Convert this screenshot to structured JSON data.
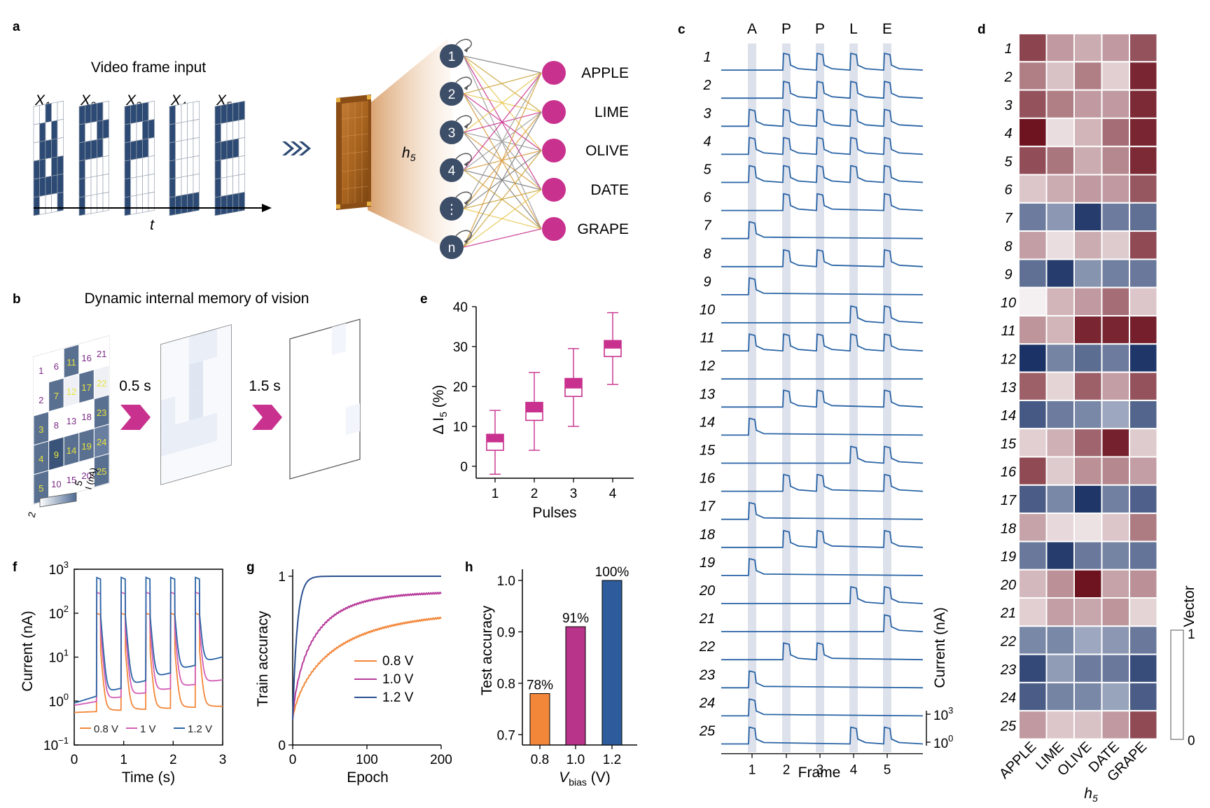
{
  "colors": {
    "navy": "#2c4a73",
    "magenta": "#c8318e",
    "blue_line": "#2a64a6",
    "orange": "#f2873a",
    "purple_bar": "#b8338a",
    "blue_bar": "#2d5b9b",
    "heat_high": "#6e1421",
    "heat_low": "#1b3266",
    "stripe": "#d7dce8"
  },
  "panels": {
    "a": {
      "letter": "a",
      "title": "Video frame input",
      "frames": [
        "X",
        "X",
        "X",
        "X",
        "X"
      ],
      "frame_subs": [
        "1",
        "2",
        "3",
        "4",
        "5"
      ],
      "time_label": "t",
      "hidden_label": "h",
      "hidden_sub": "5",
      "nodes": [
        "1",
        "2",
        "3",
        "4",
        "⋮",
        "n"
      ],
      "outputs": [
        "APPLE",
        "LIME",
        "OLIVE",
        "DATE",
        "GRAPE"
      ]
    },
    "b": {
      "letter": "b",
      "title": "Dynamic internal memory of vision",
      "times": [
        "0.5 s",
        "1.5 s"
      ],
      "cell_numbers": [
        "1",
        "2",
        "3",
        "4",
        "5",
        "6",
        "7",
        "8",
        "9",
        "10",
        "11",
        "12",
        "13",
        "14",
        "15",
        "16",
        "17",
        "18",
        "19",
        "20",
        "21",
        "22",
        "23",
        "24",
        "25"
      ],
      "colorbar_min": "2",
      "colorbar_max": "5",
      "colorbar_label": "I (nA)"
    },
    "c": {
      "letter": "c",
      "letters": [
        "A",
        "P",
        "P",
        "L",
        "E"
      ],
      "xlabel": "Frame",
      "xticks": [
        "1",
        "2",
        "3",
        "4",
        "5"
      ],
      "ylabel": "Current (nA)",
      "scale_ticks": [
        "10",
        "10"
      ],
      "scale_tick_exps": [
        "3",
        "0"
      ],
      "rows": [
        "1",
        "2",
        "3",
        "4",
        "5",
        "6",
        "7",
        "8",
        "9",
        "10",
        "11",
        "12",
        "13",
        "14",
        "15",
        "16",
        "17",
        "18",
        "19",
        "20",
        "21",
        "22",
        "23",
        "24",
        "25"
      ]
    },
    "d": {
      "letter": "d",
      "columns": [
        "APPLE",
        "LIME",
        "OLIVE",
        "DATE",
        "GRAPE"
      ],
      "xlabel": "h",
      "xlabel_sub": "5",
      "colorbar_label": "Vector",
      "colorbar_ticks": [
        "1",
        "0"
      ],
      "rows": [
        "1",
        "2",
        "3",
        "4",
        "5",
        "6",
        "7",
        "8",
        "9",
        "10",
        "11",
        "12",
        "13",
        "14",
        "15",
        "16",
        "17",
        "18",
        "19",
        "20",
        "21",
        "22",
        "23",
        "24",
        "25"
      ]
    },
    "e": {
      "letter": "e",
      "ylabel": "Δ I",
      "ylabel_sub": "5",
      "ylabel_unit": "(%)",
      "xlabel": "Pulses",
      "yticks": [
        "0",
        "10",
        "20",
        "30",
        "40"
      ],
      "xticks": [
        "1",
        "2",
        "3",
        "4"
      ]
    },
    "f": {
      "letter": "f",
      "ylabel": "Current (nA)",
      "xlabel": "Time (s)",
      "ytick_base": "10",
      "ytick_exps": [
        "3",
        "2",
        "1",
        "0",
        "−1"
      ],
      "xticks": [
        "0",
        "1",
        "2",
        "3"
      ],
      "legend": [
        "0.8 V",
        "1 V",
        "1.2 V"
      ]
    },
    "g": {
      "letter": "g",
      "ylabel": "Train accuracy",
      "xlabel": "Epoch",
      "yticks": [
        "0",
        "1"
      ],
      "xticks": [
        "0",
        "100",
        "200"
      ],
      "legend": [
        "0.8 V",
        "1.0 V",
        "1.2 V"
      ]
    },
    "h": {
      "letter": "h",
      "ylabel": "Test accuracy",
      "xlabel_main": "V",
      "xlabel_sub": "bias",
      "xlabel_unit": "(V)",
      "yticks": [
        "0.7",
        "0.8",
        "0.9",
        "1.0"
      ],
      "xticks": [
        "0.8",
        "1.0",
        "1.2"
      ],
      "bar_labels": [
        "78%",
        "91%",
        "100%"
      ]
    }
  },
  "chart_data": [
    {
      "panel": "c",
      "type": "line",
      "description_frames": [
        "A",
        "P",
        "P",
        "L",
        "E"
      ],
      "x": [
        1,
        2,
        3,
        4,
        5
      ],
      "series": [
        {
          "name": "1",
          "values": [
            0,
            1,
            1,
            1,
            1
          ]
        },
        {
          "name": "2",
          "values": [
            0,
            1,
            1,
            1,
            1
          ]
        },
        {
          "name": "3",
          "values": [
            1,
            1,
            1,
            1,
            1
          ]
        },
        {
          "name": "4",
          "values": [
            1,
            1,
            1,
            1,
            1
          ]
        },
        {
          "name": "5",
          "values": [
            1,
            1,
            1,
            1,
            1
          ]
        },
        {
          "name": "6",
          "values": [
            0,
            1,
            1,
            0,
            1
          ]
        },
        {
          "name": "7",
          "values": [
            1,
            0,
            0,
            0,
            0
          ]
        },
        {
          "name": "8",
          "values": [
            0,
            1,
            1,
            0,
            1
          ]
        },
        {
          "name": "9",
          "values": [
            1,
            0,
            0,
            0,
            0
          ]
        },
        {
          "name": "10",
          "values": [
            0,
            0,
            0,
            1,
            1
          ]
        },
        {
          "name": "11",
          "values": [
            1,
            1,
            1,
            1,
            1
          ]
        },
        {
          "name": "12",
          "values": [
            0,
            0,
            0,
            0,
            0
          ]
        },
        {
          "name": "13",
          "values": [
            0,
            1,
            1,
            0,
            1
          ]
        },
        {
          "name": "14",
          "values": [
            1,
            0,
            0,
            0,
            0
          ]
        },
        {
          "name": "15",
          "values": [
            0,
            0,
            0,
            1,
            1
          ]
        },
        {
          "name": "16",
          "values": [
            0,
            1,
            1,
            0,
            1
          ]
        },
        {
          "name": "17",
          "values": [
            1,
            0,
            0,
            0,
            0
          ]
        },
        {
          "name": "18",
          "values": [
            0,
            1,
            1,
            0,
            1
          ]
        },
        {
          "name": "19",
          "values": [
            1,
            0,
            0,
            0,
            0
          ]
        },
        {
          "name": "20",
          "values": [
            0,
            0,
            0,
            1,
            1
          ]
        },
        {
          "name": "21",
          "values": [
            0,
            0,
            0,
            0,
            1
          ]
        },
        {
          "name": "22",
          "values": [
            0,
            1,
            1,
            0,
            0
          ]
        },
        {
          "name": "23",
          "values": [
            1,
            0,
            0,
            0,
            0
          ]
        },
        {
          "name": "24",
          "values": [
            1,
            0,
            0,
            0,
            0
          ]
        },
        {
          "name": "25",
          "values": [
            1,
            0,
            0,
            1,
            1
          ]
        }
      ],
      "xlabel": "Frame",
      "ylabel": "Current (nA)"
    },
    {
      "panel": "d",
      "type": "heatmap",
      "columns": [
        "APPLE",
        "LIME",
        "OLIVE",
        "DATE",
        "GRAPE"
      ],
      "rows": [
        "1",
        "2",
        "3",
        "4",
        "5",
        "6",
        "7",
        "8",
        "9",
        "10",
        "11",
        "12",
        "13",
        "14",
        "15",
        "16",
        "17",
        "18",
        "19",
        "20",
        "21",
        "22",
        "23",
        "24",
        "25"
      ],
      "values": [
        [
          0.78,
          0.4,
          0.32,
          0.4,
          0.72
        ],
        [
          0.52,
          0.22,
          0.52,
          0.16,
          0.92
        ],
        [
          0.72,
          0.52,
          0.4,
          0.4,
          0.9
        ],
        [
          1.0,
          0.1,
          0.28,
          0.6,
          0.92
        ],
        [
          0.74,
          0.56,
          0.32,
          0.48,
          0.9
        ],
        [
          0.2,
          0.32,
          0.4,
          0.4,
          0.7
        ],
        [
          -0.62,
          -0.48,
          -0.95,
          -0.62,
          -0.68
        ],
        [
          0.38,
          0.1,
          0.32,
          0.18,
          0.76
        ],
        [
          -0.68,
          -0.95,
          -0.5,
          -0.6,
          -0.64
        ],
        [
          0.02,
          0.28,
          0.4,
          0.6,
          0.2
        ],
        [
          0.42,
          0.28,
          0.92,
          0.92,
          0.95
        ],
        [
          -1.0,
          -0.58,
          -0.7,
          -0.62,
          -0.98
        ],
        [
          0.66,
          0.14,
          0.66,
          0.38,
          0.72
        ],
        [
          -0.8,
          -0.62,
          -0.56,
          -0.4,
          -0.74
        ],
        [
          0.16,
          0.3,
          0.64,
          0.94,
          0.18
        ],
        [
          0.76,
          0.18,
          0.44,
          0.48,
          0.38
        ],
        [
          -0.78,
          -0.56,
          -0.98,
          -0.6,
          -0.76
        ],
        [
          0.36,
          0.12,
          0.08,
          0.2,
          0.54
        ],
        [
          -0.64,
          -0.95,
          -0.64,
          -0.58,
          -0.66
        ],
        [
          0.26,
          0.44,
          1.0,
          0.36,
          0.44
        ],
        [
          0.16,
          0.38,
          0.34,
          0.42,
          0.14
        ],
        [
          -0.56,
          -0.56,
          -0.4,
          -0.48,
          -0.64
        ],
        [
          -0.88,
          -0.46,
          -0.62,
          -0.64,
          -0.86
        ],
        [
          -0.78,
          -0.58,
          -0.56,
          -0.42,
          -0.78
        ],
        [
          0.4,
          0.2,
          0.22,
          0.4,
          0.76
        ]
      ],
      "colorbar_label": "Vector",
      "colorbar_range": [
        0,
        1
      ]
    },
    {
      "panel": "e",
      "type": "box",
      "categories": [
        "1",
        "2",
        "3",
        "4"
      ],
      "boxes": [
        {
          "min": -2,
          "q1": 4,
          "median": 6,
          "q3": 8,
          "max": 14
        },
        {
          "min": 4,
          "q1": 11.5,
          "median": 13.5,
          "q3": 16,
          "max": 23.5
        },
        {
          "min": 10,
          "q1": 17.5,
          "median": 19.5,
          "q3": 22,
          "max": 29.5
        },
        {
          "min": 20.5,
          "q1": 27.5,
          "median": 29.5,
          "q3": 31.5,
          "max": 38.5
        }
      ],
      "ylim": [
        -3,
        40
      ],
      "xlabel": "Pulses",
      "ylabel": "Δ I5 (%)"
    },
    {
      "panel": "f",
      "type": "line",
      "ylog": true,
      "ylim": [
        0.1,
        1000
      ],
      "xlim": [
        0,
        3
      ],
      "pulse_starts": [
        0.45,
        0.95,
        1.45,
        1.95,
        2.45
      ],
      "pulse_width": 0.08,
      "series": [
        {
          "name": "0.8 V",
          "peak": 100,
          "baseline_start": 0.55,
          "baseline_end": 0.75
        },
        {
          "name": "1 V",
          "peak": 300,
          "baseline_start": 0.8,
          "baseline_end": 3
        },
        {
          "name": "1.2 V",
          "peak": 650,
          "baseline_start": 0.9,
          "baseline_end": 10
        }
      ],
      "xlabel": "Time (s)",
      "ylabel": "Current (nA)"
    },
    {
      "panel": "g",
      "type": "line",
      "xlim": [
        0,
        200
      ],
      "ylim": [
        0,
        1
      ],
      "series": [
        {
          "name": "0.8 V",
          "final": 0.8,
          "rate": 55
        },
        {
          "name": "1.0 V",
          "final": 0.91,
          "rate": 28
        },
        {
          "name": "1.2 V",
          "final": 1.0,
          "rate": 6
        }
      ],
      "xlabel": "Epoch",
      "ylabel": "Train accuracy"
    },
    {
      "panel": "h",
      "type": "bar",
      "categories": [
        "0.8",
        "1.0",
        "1.2"
      ],
      "values": [
        0.78,
        0.91,
        1.0
      ],
      "ylim": [
        0.68,
        1.0
      ],
      "xlabel": "Vbias (V)",
      "ylabel": "Test accuracy"
    }
  ]
}
